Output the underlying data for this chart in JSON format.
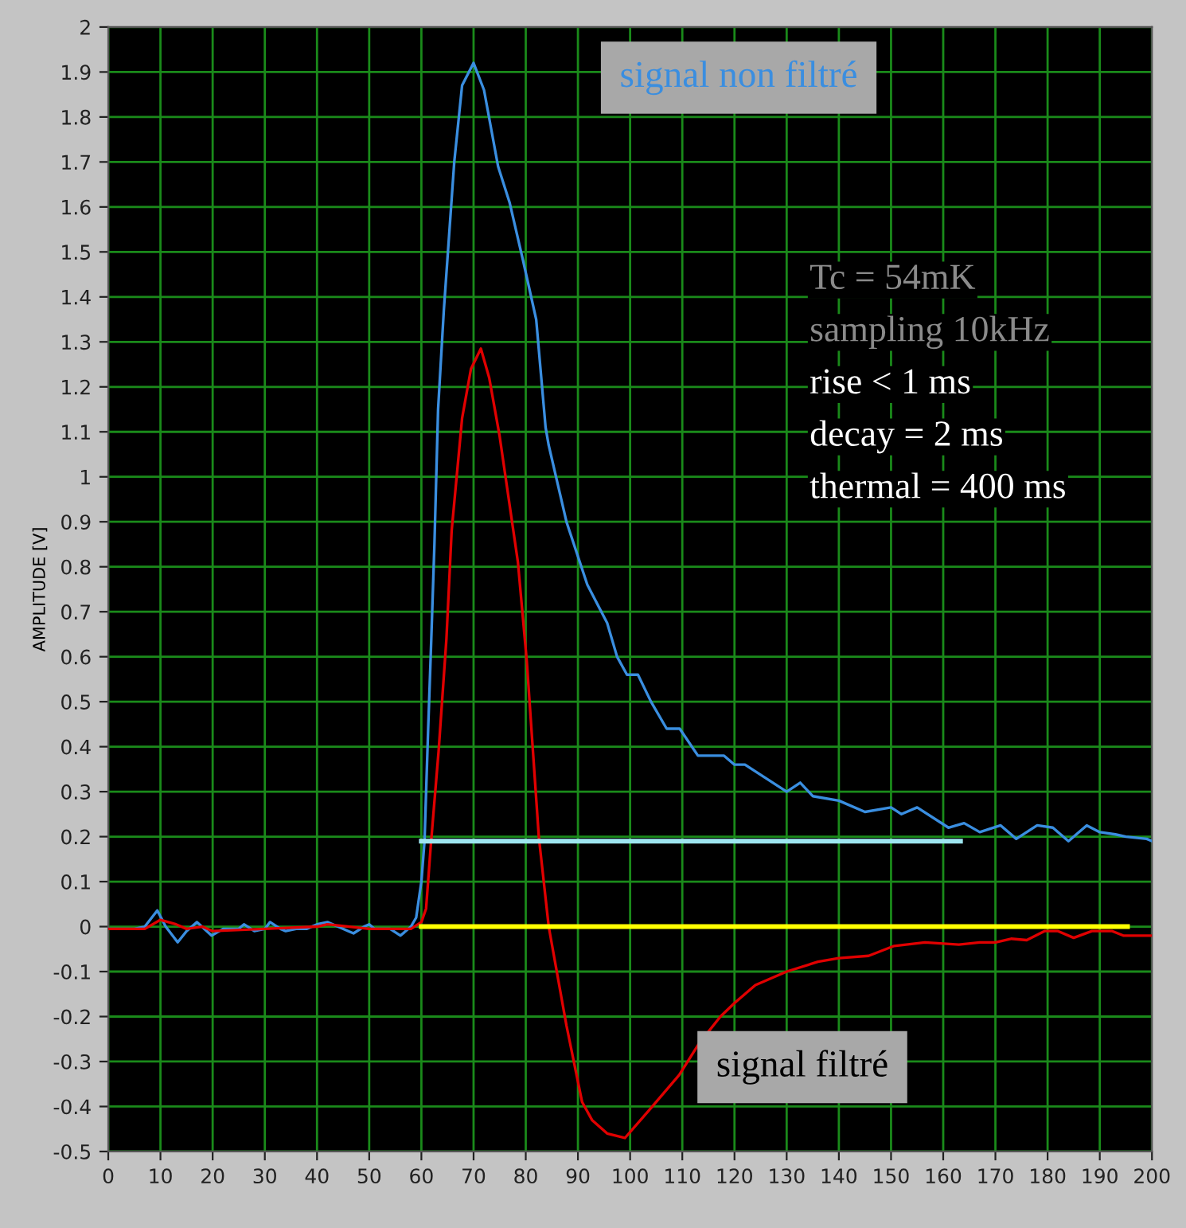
{
  "chart_data": {
    "type": "line",
    "ylabel": "AMPLITUDE [V]",
    "annotations": [
      "Tc = 54mK",
      "sampling 10kHz",
      "rise < 1 ms",
      "decay = 2 ms",
      "thermal = 400 ms"
    ],
    "xlim": [
      0,
      200
    ],
    "xticks": [
      0,
      10,
      20,
      30,
      40,
      50,
      60,
      70,
      80,
      90,
      100,
      110,
      120,
      130,
      140,
      150,
      160,
      170,
      180,
      190,
      200
    ],
    "ylim": [
      -0.5,
      2
    ],
    "yticks": [
      -0.5,
      -0.4,
      -0.3,
      -0.2,
      -0.1,
      0,
      0.1,
      0.2,
      0.3,
      0.4,
      0.5,
      0.6,
      0.7,
      0.8,
      0.9,
      1,
      1.1,
      1.2,
      1.3,
      1.4,
      1.5,
      1.6,
      1.7,
      1.8,
      1.9,
      2
    ],
    "grid": true,
    "marker": "none",
    "line_style": "solid",
    "series": [
      {
        "name": "signal non filtré",
        "color": "#3a8ee0",
        "x": [
          0,
          5,
          7,
          9.4,
          11,
          13.3,
          15,
          17,
          19.8,
          22,
          25,
          26,
          28,
          30,
          31,
          33,
          34,
          36,
          38,
          40,
          42,
          44,
          46,
          47,
          49,
          50,
          51,
          54,
          56,
          58,
          59,
          60,
          60.6,
          61.3,
          61.9,
          62.5,
          63.2,
          64.3,
          66.3,
          67.8,
          70,
          72,
          74.7,
          76.9,
          79.5,
          82,
          83.8,
          84.4,
          87.8,
          91.8,
          95.6,
          97.5,
          99.4,
          101.5,
          104,
          107,
          109.5,
          113,
          115,
          118,
          120,
          122,
          126,
          130,
          132.6,
          135,
          140,
          145,
          150,
          152,
          155,
          161,
          164,
          167,
          171,
          174,
          178,
          181,
          184,
          187.5,
          190,
          193,
          195,
          199,
          200
        ],
        "values": [
          -0.005,
          -0.005,
          0.0,
          0.036,
          0.0,
          -0.035,
          -0.01,
          0.01,
          -0.02,
          -0.005,
          -0.005,
          0.005,
          -0.01,
          -0.005,
          0.01,
          -0.005,
          -0.01,
          -0.005,
          -0.005,
          0.005,
          0.01,
          0.0,
          -0.01,
          -0.015,
          0.0,
          0.005,
          -0.005,
          -0.005,
          -0.02,
          0.0,
          0.02,
          0.1,
          0.19,
          0.44,
          0.64,
          0.85,
          1.15,
          1.37,
          1.7,
          1.87,
          1.92,
          1.86,
          1.69,
          1.61,
          1.48,
          1.35,
          1.11,
          1.07,
          0.9,
          0.76,
          0.675,
          0.6,
          0.56,
          0.56,
          0.5,
          0.44,
          0.44,
          0.38,
          0.38,
          0.38,
          0.36,
          0.36,
          0.33,
          0.3,
          0.32,
          0.29,
          0.28,
          0.255,
          0.265,
          0.25,
          0.265,
          0.22,
          0.23,
          0.21,
          0.225,
          0.195,
          0.225,
          0.22,
          0.19,
          0.225,
          0.21,
          0.205,
          0.2,
          0.195,
          0.19
        ]
      },
      {
        "name": "signal filtré",
        "color": "#e00000",
        "x": [
          0,
          7,
          10,
          13,
          15,
          18,
          20,
          30,
          40,
          42,
          50,
          58,
          60,
          60.9,
          61.8,
          63.3,
          64.8,
          65.8,
          67.8,
          69.5,
          71.4,
          73,
          75,
          78.5,
          80.2,
          82.5,
          84.4,
          87.8,
          90.8,
          92.7,
          95.6,
          99,
          103.5,
          109.4,
          113.2,
          117.3,
          120,
          124,
          130,
          136,
          140,
          145.7,
          150.6,
          156.5,
          163,
          167,
          170,
          173,
          176,
          179.4,
          182,
          185,
          188.5,
          192.4,
          194.5,
          198.5,
          200
        ],
        "values": [
          -0.005,
          -0.005,
          0.015,
          0.005,
          -0.005,
          0.0,
          -0.01,
          -0.005,
          0.0,
          0.005,
          -0.005,
          -0.005,
          0.01,
          0.04,
          0.18,
          0.39,
          0.64,
          0.88,
          1.13,
          1.24,
          1.285,
          1.22,
          1.09,
          0.81,
          0.59,
          0.2,
          0.0,
          -0.22,
          -0.39,
          -0.43,
          -0.46,
          -0.47,
          -0.41,
          -0.33,
          -0.26,
          -0.2,
          -0.17,
          -0.13,
          -0.1,
          -0.078,
          -0.07,
          -0.065,
          -0.043,
          -0.035,
          -0.04,
          -0.035,
          -0.035,
          -0.027,
          -0.03,
          -0.01,
          -0.01,
          -0.025,
          -0.01,
          -0.01,
          -0.02,
          -0.02,
          -0.02
        ]
      },
      {
        "color": "#9ee6f0",
        "x": [
          60,
          163.3
        ],
        "values": [
          0.19,
          0.19
        ]
      },
      {
        "color": "#ffff00",
        "x": [
          60,
          195.3
        ],
        "values": [
          0,
          0
        ]
      }
    ]
  }
}
